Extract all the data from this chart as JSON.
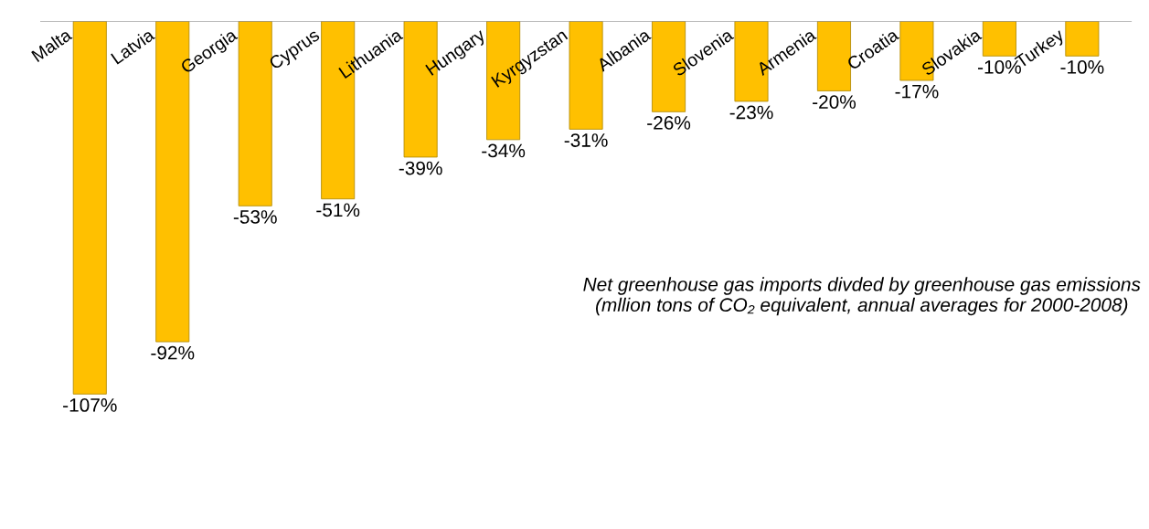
{
  "chart_data": {
    "type": "bar",
    "categories": [
      "Malta",
      "Latvia",
      "Georgia",
      "Cyprus",
      "Lithuania",
      "Hungary",
      "Kyrgyzstan",
      "Albania",
      "Slovenia",
      "Armenia",
      "Croatia",
      "Slovakia",
      "Turkey"
    ],
    "values": [
      -107,
      -92,
      -53,
      -51,
      -39,
      -34,
      -31,
      -26,
      -23,
      -20,
      -17,
      -10,
      -10
    ],
    "value_labels": [
      "-107%",
      "-92%",
      "-53%",
      "-51%",
      "-39%",
      "-34%",
      "-31%",
      "-26%",
      "-23%",
      "-20%",
      "-17%",
      "-10%",
      "-10%"
    ],
    "color": "#ffc000",
    "annotations": [
      "Net greenhouse gas imports divded by greenhouse gas emissions (mllion tons of CO₂ equivalent, annual averages for 2000-2008)"
    ],
    "legend": false
  }
}
